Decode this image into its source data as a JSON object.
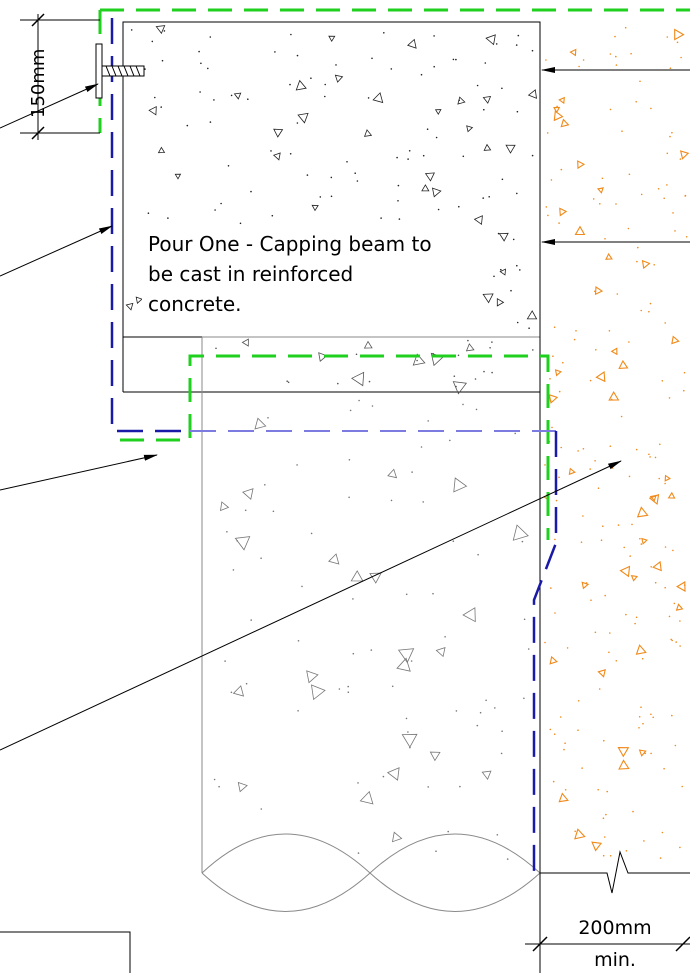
{
  "labels": {
    "dim_150": "150mm",
    "pour_line1": "Pour One - Capping beam to",
    "pour_line2": "be cast in reinforced",
    "pour_line3": "concrete.",
    "dim_200_line1": "200mm",
    "dim_200_line2": "min."
  },
  "colors": {
    "line": "#000000",
    "pour_outline": "#1fd01f",
    "membrane_blue": "#1a1aa8",
    "membrane_light": "#7b7be0",
    "existing_aggregate": "#f08a1a",
    "aggregate_grey": "#8a8a8a",
    "background": "#ffffff"
  },
  "icons": {
    "fixing": "screw-anchor-icon",
    "break": "break-line-icon"
  }
}
